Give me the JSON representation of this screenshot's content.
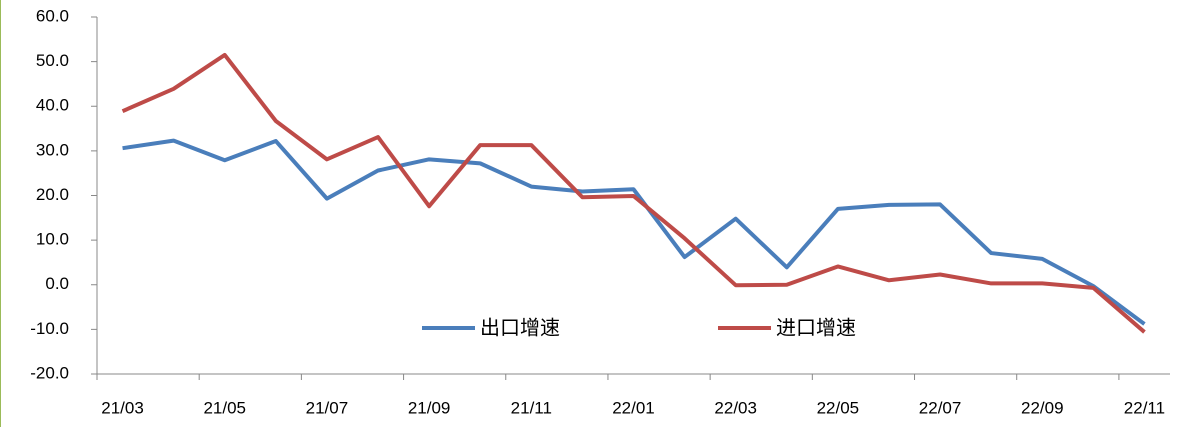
{
  "chart_data": {
    "type": "line",
    "categories": [
      "21/03",
      null,
      "21/05",
      null,
      "21/07",
      null,
      "21/09",
      null,
      "21/11",
      null,
      "22/01",
      null,
      "22/03",
      null,
      "22/05",
      null,
      "22/07",
      null,
      "22/09",
      null,
      "22/11"
    ],
    "series": [
      {
        "name": "出口增速",
        "color": "#4a7ebb",
        "values": [
          30.6,
          32.3,
          27.9,
          32.2,
          19.3,
          25.6,
          28.1,
          27.2,
          22.0,
          20.9,
          21.4,
          6.2,
          14.8,
          3.9,
          17.0,
          17.9,
          18.0,
          7.1,
          5.8,
          -0.3,
          -8.8
        ]
      },
      {
        "name": "进口增速",
        "color": "#be4b48",
        "values": [
          38.9,
          43.9,
          51.5,
          36.7,
          28.1,
          33.1,
          17.6,
          31.3,
          31.3,
          19.6,
          19.9,
          10.4,
          -0.1,
          0.0,
          4.1,
          1.0,
          2.3,
          0.3,
          0.3,
          -0.7,
          -10.6
        ]
      }
    ],
    "ylim": [
      -20,
      60
    ],
    "yticks": [
      {
        "value": -20,
        "label": "-20.0"
      },
      {
        "value": -10,
        "label": "-10.0"
      },
      {
        "value": 0,
        "label": "0.0"
      },
      {
        "value": 10,
        "label": "10.0"
      },
      {
        "value": 20,
        "label": "20.0"
      },
      {
        "value": 30,
        "label": "30.0"
      },
      {
        "value": 40,
        "label": "40.0"
      },
      {
        "value": 50,
        "label": "50.0"
      },
      {
        "value": 60,
        "label": "60.0"
      }
    ],
    "grid": false
  }
}
